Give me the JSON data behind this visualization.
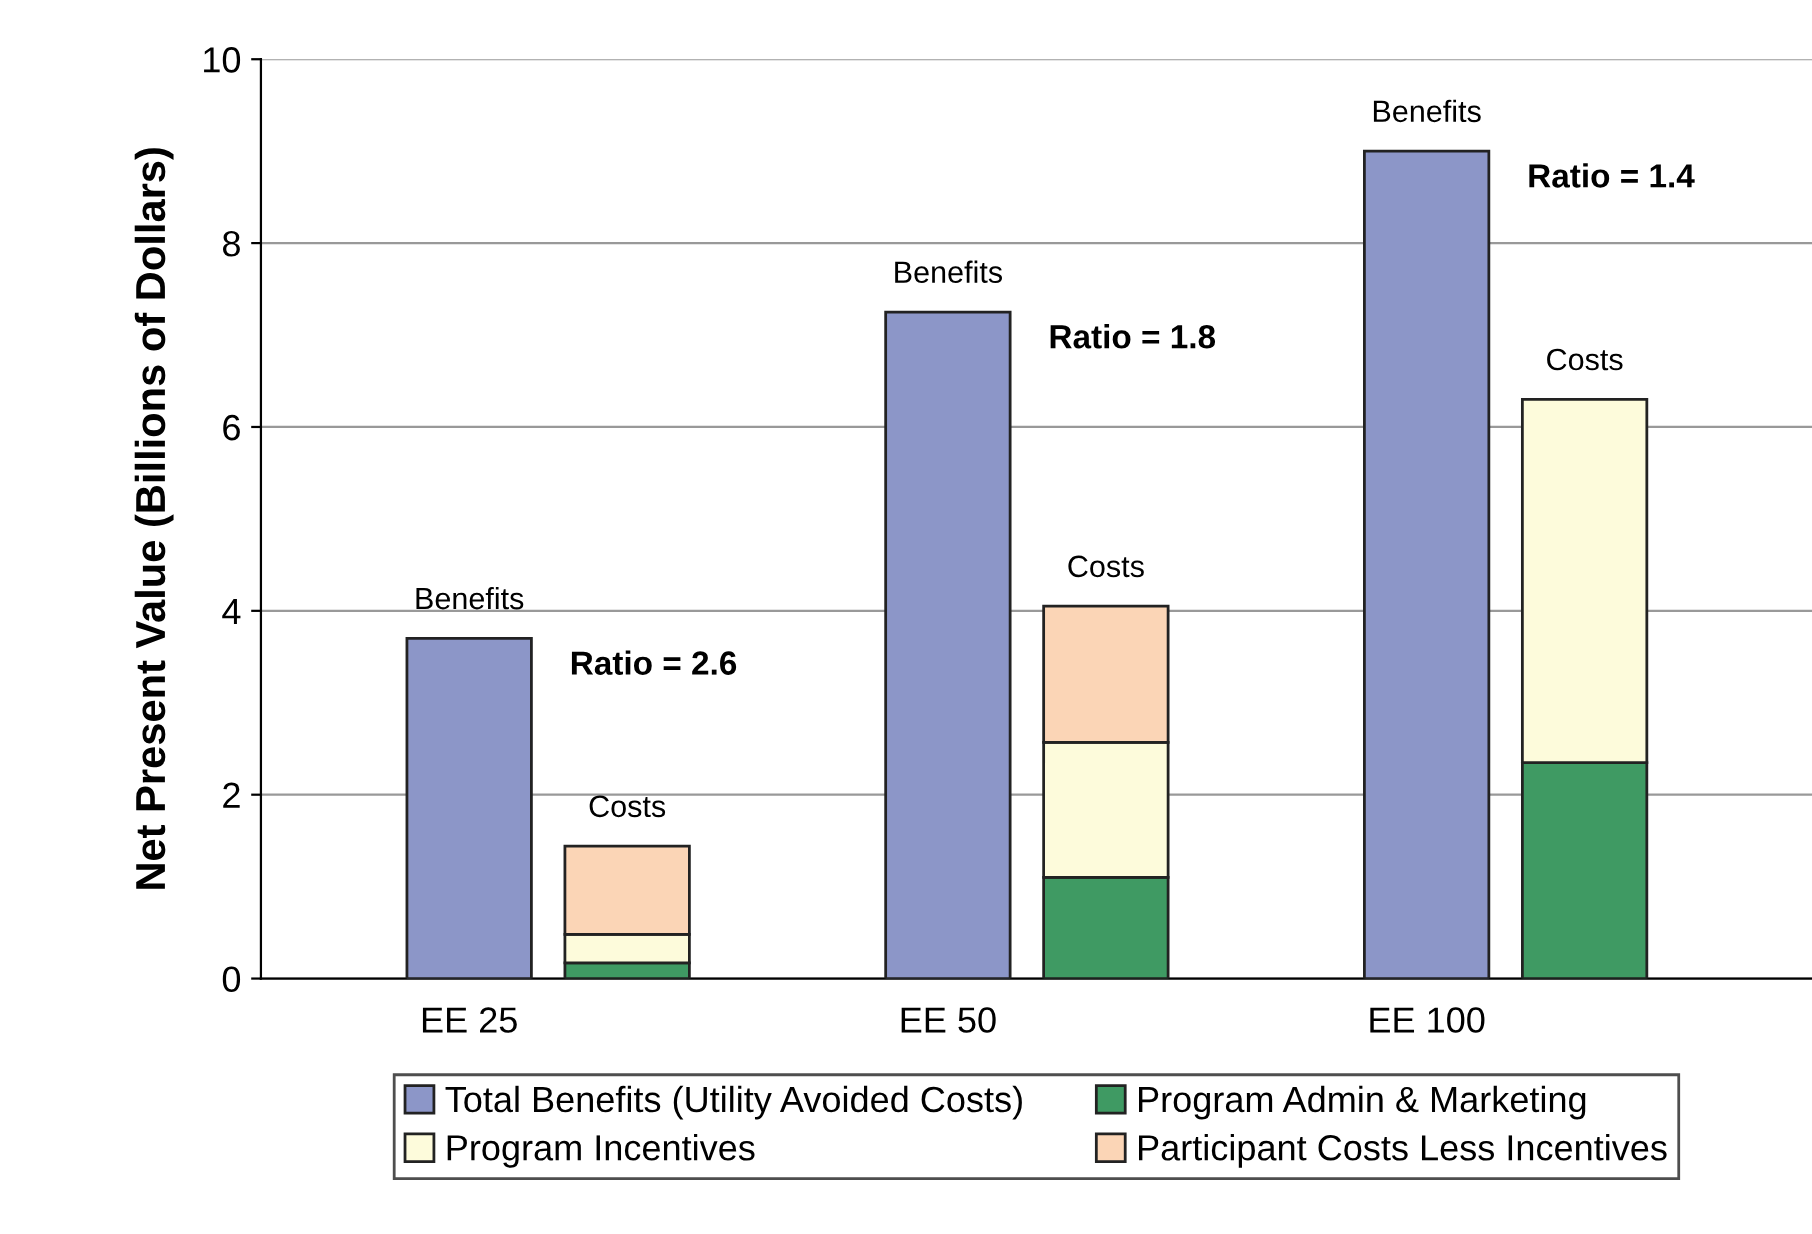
{
  "chart_data": {
    "type": "bar",
    "ylabel": "Net Present Value (Billions of Dollars)",
    "categories": [
      "EE 25",
      null,
      "EE 50",
      null,
      "EE 100",
      null
    ],
    "stacked": true,
    "series": [
      {
        "name": "Total Benefits (Utility Avoided Costs)",
        "color": "#8c96c8",
        "values": [
          3.7,
          null,
          7.25,
          null,
          9.0,
          null
        ]
      },
      {
        "name": "Program Admin & Marketing",
        "color": "#3f9a63",
        "values": [
          null,
          0.17,
          null,
          1.1,
          null,
          2.35
        ]
      },
      {
        "name": "Program Incentives",
        "color": "#fdfbdb",
        "values": [
          null,
          0.31,
          null,
          1.47,
          null,
          3.95
        ]
      },
      {
        "name": "Participant Costs Less Incentives",
        "color": "#fbd5b6",
        "values": [
          null,
          0.96,
          null,
          1.48,
          null,
          null
        ]
      }
    ],
    "ylim": [
      0,
      10
    ],
    "yticks": [
      0,
      2,
      4,
      6,
      8,
      10
    ],
    "grid": "y",
    "legend": "bottom",
    "annotations": [
      "Benefits",
      "Costs",
      "Ratio = 2.6",
      "Benefits",
      "Costs",
      "Ratio = 1.8",
      "Benefits",
      "Costs",
      "Ratio = 1.4"
    ]
  }
}
